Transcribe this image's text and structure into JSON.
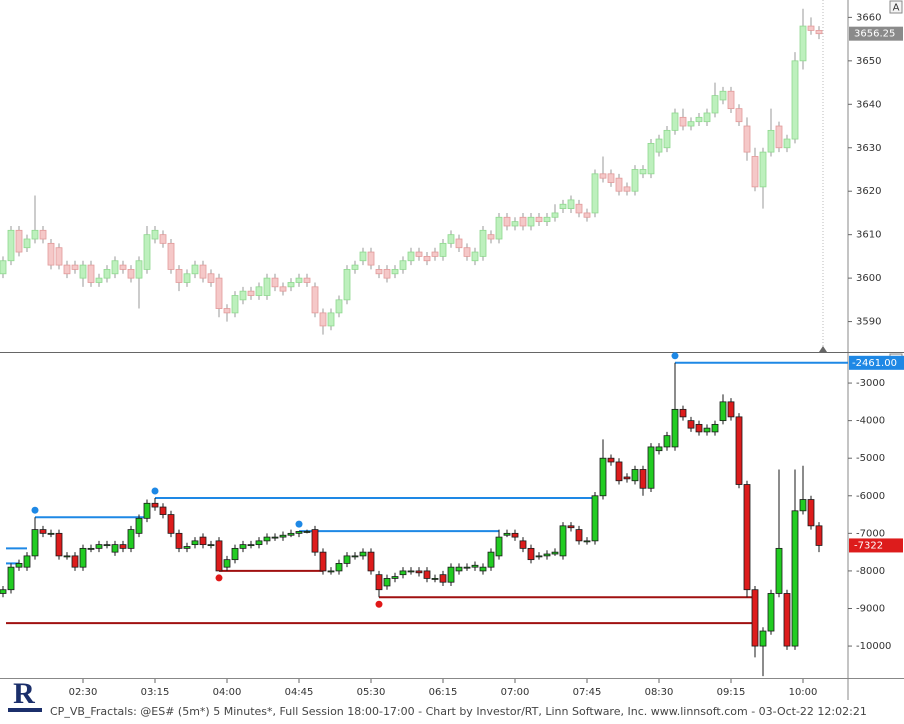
{
  "chart_data": [
    {
      "type": "candlestick",
      "button": "A",
      "ylim": [
        3583,
        3664
      ],
      "yticks": [
        3590,
        3600,
        3610,
        3620,
        3630,
        3640,
        3650,
        3660
      ],
      "colors": {
        "up": "#bdf0bd",
        "up_edge": "#8fd88f",
        "down": "#f5c8c8",
        "down_edge": "#e29a9a",
        "wick": "#9a9a9a"
      },
      "open": [
        3601,
        3604,
        3611,
        3607,
        3609,
        3611,
        3608,
        3607,
        3603,
        3603,
        3600,
        3603,
        3599,
        3600,
        3601,
        3603,
        3602,
        3600,
        3602,
        3609,
        3610,
        3608,
        3602,
        3599,
        3601,
        3603,
        3601,
        3600,
        3593,
        3592,
        3595,
        3597,
        3596,
        3596,
        3600,
        3598,
        3598,
        3599,
        3600,
        3598,
        3592,
        3589,
        3592,
        3595,
        3602,
        3604,
        3606,
        3602,
        3602,
        3601,
        3602,
        3604,
        3606,
        3605,
        3606,
        3605,
        3608,
        3609,
        3607,
        3604,
        3605,
        3610,
        3609,
        3614,
        3612,
        3614,
        3612,
        3614,
        3613,
        3614,
        3616,
        3616,
        3617,
        3615,
        3615,
        3624,
        3624,
        3623,
        3621,
        3620,
        3624,
        3624,
        3629,
        3630,
        3634,
        3637,
        3635,
        3636,
        3636,
        3638,
        3641,
        3643,
        3639,
        3635,
        3628,
        3621,
        3629,
        3635,
        3630,
        3632,
        3650,
        3658,
        3657
      ],
      "high": [
        3605,
        3612,
        3612,
        3610,
        3619,
        3612,
        3609,
        3608,
        3604,
        3604,
        3604,
        3604,
        3601,
        3603,
        3605,
        3604,
        3603,
        3605,
        3612,
        3612,
        3611,
        3609,
        3603,
        3602,
        3604,
        3604,
        3602,
        3601,
        3594,
        3597,
        3598,
        3598,
        3599,
        3601,
        3601,
        3599,
        3600,
        3601,
        3601,
        3599,
        3593,
        3593,
        3596,
        3603,
        3604,
        3607,
        3607,
        3603,
        3603,
        3603,
        3605,
        3607,
        3607,
        3606,
        3607,
        3609,
        3611,
        3610,
        3608,
        3607,
        3612,
        3611,
        3615,
        3615,
        3614,
        3615,
        3615,
        3615,
        3615,
        3617,
        3618,
        3619,
        3618,
        3616,
        3625,
        3628,
        3625,
        3624,
        3622,
        3626,
        3626,
        3632,
        3633,
        3635,
        3639,
        3639,
        3637,
        3638,
        3639,
        3645,
        3644,
        3644,
        3640,
        3637,
        3630,
        3630,
        3639,
        3636,
        3633,
        3652,
        3662,
        3660,
        3658
      ],
      "low": [
        3600,
        3603,
        3605,
        3606,
        3608,
        3608,
        3602,
        3602,
        3600,
        3601,
        3598,
        3598,
        3598,
        3599,
        3600,
        3601,
        3599,
        3593,
        3601,
        3608,
        3607,
        3601,
        3597,
        3598,
        3600,
        3599,
        3598,
        3591,
        3590,
        3591,
        3594,
        3595,
        3595,
        3595,
        3597,
        3596,
        3597,
        3598,
        3598,
        3591,
        3587,
        3588,
        3591,
        3594,
        3601,
        3603,
        3602,
        3600,
        3599,
        3600,
        3601,
        3603,
        3604,
        3603,
        3604,
        3604,
        3607,
        3606,
        3604,
        3603,
        3604,
        3608,
        3608,
        3611,
        3611,
        3611,
        3611,
        3612,
        3612,
        3613,
        3615,
        3615,
        3614,
        3613,
        3614,
        3622,
        3621,
        3619,
        3619,
        3619,
        3623,
        3623,
        3628,
        3629,
        3633,
        3634,
        3634,
        3635,
        3635,
        3637,
        3640,
        3638,
        3635,
        3627,
        3620,
        3616,
        3628,
        3629,
        3629,
        3631,
        3648,
        3656,
        3655
      ],
      "close": [
        3604,
        3611,
        3606,
        3609,
        3611,
        3609,
        3603,
        3603,
        3601,
        3602,
        3603,
        3599,
        3600,
        3602,
        3604,
        3602,
        3600,
        3604,
        3610,
        3611,
        3608,
        3602,
        3599,
        3601,
        3603,
        3600,
        3599,
        3593,
        3592,
        3596,
        3597,
        3596,
        3598,
        3600,
        3598,
        3597,
        3599,
        3600,
        3599,
        3592,
        3589,
        3592,
        3595,
        3602,
        3603,
        3606,
        3603,
        3601,
        3600,
        3602,
        3604,
        3606,
        3605,
        3604,
        3605,
        3608,
        3610,
        3607,
        3605,
        3606,
        3611,
        3609,
        3614,
        3612,
        3613,
        3612,
        3614,
        3613,
        3614,
        3615,
        3617,
        3618,
        3615,
        3614,
        3624,
        3623,
        3622,
        3620,
        3620,
        3625,
        3625,
        3631,
        3632,
        3634,
        3638,
        3635,
        3636,
        3637,
        3638,
        3642,
        3643,
        3639,
        3636,
        3629,
        3621,
        3629,
        3634,
        3630,
        3632,
        3650,
        3658,
        3657,
        3656.25
      ]
    },
    {
      "type": "candlestick",
      "button": "A",
      "ylim": [
        -10850,
        -2200
      ],
      "yticks": [
        -3000,
        -4000,
        -5000,
        -6000,
        -7000,
        -8000,
        -9000,
        -10000
      ],
      "colors": {
        "up": "#22cc22",
        "down": "#dd1c1c",
        "edge": "#1a1a1a",
        "wick": "#1a1a1a",
        "high_level": "#1e88e5",
        "low_level": "#a01010"
      },
      "categories": [
        null,
        null,
        null,
        null,
        null,
        null,
        null,
        null,
        null,
        null,
        "02:30",
        null,
        null,
        null,
        null,
        null,
        null,
        null,
        null,
        "03:15",
        null,
        null,
        null,
        null,
        null,
        null,
        null,
        null,
        "04:00",
        null,
        null,
        null,
        null,
        null,
        null,
        null,
        null,
        "04:45",
        null,
        null,
        null,
        null,
        null,
        null,
        null,
        null,
        "05:30",
        null,
        null,
        null,
        null,
        null,
        null,
        null,
        null,
        "06:15",
        null,
        null,
        null,
        null,
        null,
        null,
        null,
        null,
        "07:00",
        null,
        null,
        null,
        null,
        null,
        null,
        null,
        null,
        "07:45",
        null,
        null,
        null,
        null,
        null,
        null,
        null,
        null,
        "08:30",
        null,
        null,
        null,
        null,
        null,
        null,
        null,
        null,
        "09:15",
        null,
        null,
        null,
        null,
        null,
        null,
        null,
        null,
        "10:00",
        null,
        null
      ],
      "open": [
        -8600,
        -8500,
        -7900,
        -7900,
        -7600,
        -6900,
        -7000,
        -7000,
        -7600,
        -7600,
        -7900,
        -7400,
        -7400,
        -7300,
        -7500,
        -7300,
        -7400,
        -7000,
        -6600,
        -6200,
        -6300,
        -6500,
        -7000,
        -7400,
        -7300,
        -7100,
        -7300,
        -7200,
        -7900,
        -7700,
        -7400,
        -7300,
        -7300,
        -7200,
        -7100,
        -7100,
        -7050,
        -7000,
        -6950,
        -6900,
        -7500,
        -8000,
        -8000,
        -7800,
        -7600,
        -7600,
        -7500,
        -8100,
        -8400,
        -8200,
        -8100,
        -8000,
        -8000,
        -8000,
        -8200,
        -8100,
        -8300,
        -8000,
        -7900,
        -7900,
        -8000,
        -7900,
        -7600,
        -7050,
        -7000,
        -7200,
        -7400,
        -7600,
        -7600,
        -7550,
        -7600,
        -6800,
        -6900,
        -7200,
        -7200,
        -6000,
        -5000,
        -5100,
        -5500,
        -5600,
        -5300,
        -5800,
        -4800,
        -4700,
        -4700,
        -3700,
        -4000,
        -4100,
        -4300,
        -4300,
        -4000,
        -3500,
        -3900,
        -5700,
        -8500,
        -10000,
        -9600,
        -8600,
        -8600,
        -10000,
        -6400,
        -6100,
        -6800
      ],
      "high": [
        -8400,
        -7800,
        -7700,
        -7500,
        -6570,
        -6800,
        -6900,
        -6900,
        -7500,
        -7500,
        -7300,
        -7300,
        -7200,
        -7200,
        -7200,
        -7200,
        -6800,
        -6500,
        -6100,
        -6060,
        -6200,
        -6400,
        -6900,
        -7250,
        -7100,
        -7000,
        -7200,
        -7100,
        -7600,
        -7300,
        -7200,
        -7200,
        -7100,
        -7000,
        -7000,
        -6950,
        -6900,
        -6940,
        -6900,
        -6800,
        -7400,
        -7900,
        -7700,
        -7500,
        -7500,
        -7400,
        -7400,
        -8000,
        -8100,
        -8050,
        -7900,
        -7900,
        -7900,
        -7900,
        -8100,
        -8000,
        -7800,
        -7800,
        -7800,
        -7750,
        -7800,
        -7400,
        -6900,
        -6900,
        -6900,
        -7100,
        -7300,
        -7500,
        -7450,
        -7400,
        -6700,
        -6700,
        -6800,
        -7100,
        -5900,
        -4500,
        -4900,
        -5000,
        -5400,
        -5200,
        -5200,
        -4600,
        -4600,
        -4300,
        -2461,
        -3600,
        -3900,
        -4000,
        -4100,
        -4000,
        -3300,
        -3400,
        -3800,
        -5600,
        -8400,
        -9500,
        -8500,
        -5300,
        -8500,
        -5300,
        -5200,
        -6000,
        -6700
      ],
      "low": [
        -8700,
        -8600,
        -8000,
        -8000,
        -7700,
        -7100,
        -7100,
        -7700,
        -7700,
        -8000,
        -8000,
        -7500,
        -7500,
        -7400,
        -7600,
        -7500,
        -7500,
        -7100,
        -6700,
        -6400,
        -6600,
        -7100,
        -7500,
        -7500,
        -7400,
        -7400,
        -7400,
        -8000,
        -8000,
        -7800,
        -7500,
        -7400,
        -7400,
        -7300,
        -7200,
        -7200,
        -7100,
        -7100,
        -7000,
        -7600,
        -8100,
        -8100,
        -8100,
        -7900,
        -7700,
        -7700,
        -8100,
        -8700,
        -8500,
        -8300,
        -8200,
        -8100,
        -8150,
        -8300,
        -8300,
        -8400,
        -8400,
        -8100,
        -8000,
        -8000,
        -8100,
        -8000,
        -7700,
        -7100,
        -7200,
        -7500,
        -7800,
        -7700,
        -7700,
        -7600,
        -7700,
        -6950,
        -7300,
        -7300,
        -7300,
        -6100,
        -5200,
        -5700,
        -5650,
        -5700,
        -6000,
        -5900,
        -4900,
        -4800,
        -4800,
        -4000,
        -4300,
        -4400,
        -4400,
        -4400,
        -4100,
        -4000,
        -5800,
        -8700,
        -10300,
        -10800,
        -9700,
        -8700,
        -10100,
        -10100,
        -6500,
        -6900,
        -7500
      ],
      "close": [
        -8500,
        -7900,
        -7800,
        -7600,
        -6900,
        -7000,
        -7000,
        -7600,
        -7600,
        -7900,
        -7400,
        -7400,
        -7300,
        -7300,
        -7300,
        -7400,
        -6900,
        -6600,
        -6200,
        -6300,
        -6500,
        -7000,
        -7400,
        -7350,
        -7200,
        -7300,
        -7300,
        -8000,
        -7700,
        -7400,
        -7300,
        -7300,
        -7200,
        -7100,
        -7100,
        -7050,
        -7000,
        -6950,
        -6950,
        -7500,
        -8000,
        -8000,
        -7800,
        -7600,
        -7600,
        -7500,
        -8000,
        -8500,
        -8200,
        -8150,
        -8000,
        -8000,
        -8050,
        -8200,
        -8200,
        -8300,
        -7900,
        -7900,
        -7900,
        -7850,
        -7900,
        -7500,
        -7100,
        -7000,
        -7100,
        -7400,
        -7700,
        -7600,
        -7550,
        -7500,
        -6800,
        -6850,
        -7200,
        -7200,
        -6000,
        -5000,
        -5100,
        -5600,
        -5550,
        -5300,
        -5800,
        -4700,
        -4700,
        -4400,
        -3700,
        -3900,
        -4200,
        -4300,
        -4200,
        -4100,
        -3500,
        -3900,
        -5700,
        -8500,
        -10000,
        -9600,
        -8600,
        -7400,
        -10000,
        -6400,
        -6100,
        -6800,
        -7322
      ],
      "levels": [
        {
          "kind": "high",
          "value": -7400,
          "from": 0,
          "to": 3
        },
        {
          "kind": "high",
          "value": -7800,
          "from": 0,
          "to": 2
        },
        {
          "kind": "high",
          "value": -6570,
          "from": 4,
          "to": 18
        },
        {
          "kind": "high",
          "value": -6060,
          "from": 19,
          "to": 74
        },
        {
          "kind": "high",
          "value": -6940,
          "from": 37,
          "to": 62
        },
        {
          "kind": "high",
          "value": -2461,
          "label": "-2461.00",
          "from": 84,
          "to": 102
        },
        {
          "kind": "low",
          "value": -8000,
          "from": 27,
          "to": 40
        },
        {
          "kind": "low",
          "value": -8700,
          "from": 47,
          "to": 94
        },
        {
          "kind": "low",
          "value": -9390,
          "from": 0,
          "to": 94
        }
      ]
    }
  ],
  "footer": "CP_VB_Fractals: @ES# (5m*) 5 Minutes*, Full Session 18:00-17:00 - Chart by Investor/RT, Linn Software, Inc. www.linnsoft.com - 03-Oct-22 12:02:21"
}
